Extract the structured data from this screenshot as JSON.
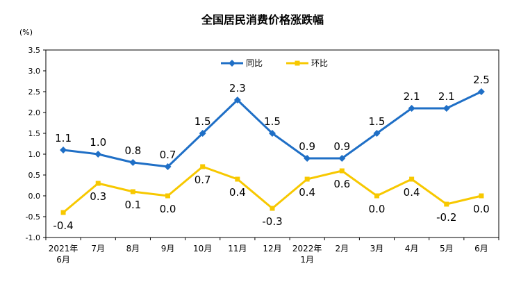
{
  "chart_data": {
    "type": "line",
    "title": "全国居民消费价格涨跌幅",
    "ylabel": "(%)",
    "ylim": [
      -1.0,
      3.5
    ],
    "yticks": [
      "3.5",
      "3.0",
      "2.5",
      "2.0",
      "1.5",
      "1.0",
      "0.5",
      "0.0",
      "-0.5",
      "-1.0"
    ],
    "ytick_values": [
      3.5,
      3.0,
      2.5,
      2.0,
      1.5,
      1.0,
      0.5,
      0.0,
      -0.5,
      -1.0
    ],
    "categories": [
      [
        "2021年",
        "6月"
      ],
      [
        "7月"
      ],
      [
        "8月"
      ],
      [
        "9月"
      ],
      [
        "10月"
      ],
      [
        "11月"
      ],
      [
        "12月"
      ],
      [
        "2022年",
        "1月"
      ],
      [
        "2月"
      ],
      [
        "3月"
      ],
      [
        "4月"
      ],
      [
        "5月"
      ],
      [
        "6月"
      ]
    ],
    "legend_position": "top-center",
    "grid": false,
    "series": [
      {
        "name": "同比",
        "color": "#1f6fc6",
        "marker": "diamond",
        "values": [
          1.1,
          1.0,
          0.8,
          0.7,
          1.5,
          2.3,
          1.5,
          0.9,
          0.9,
          1.5,
          2.1,
          2.1,
          2.5
        ],
        "labels": [
          "1.1",
          "1.0",
          "0.8",
          "0.7",
          "1.5",
          "2.3",
          "1.5",
          "0.9",
          "0.9",
          "1.5",
          "2.1",
          "2.1",
          "2.5"
        ],
        "label_side": "above"
      },
      {
        "name": "环比",
        "color": "#f7c800",
        "marker": "square",
        "values": [
          -0.4,
          0.3,
          0.1,
          0.0,
          0.7,
          0.4,
          -0.3,
          0.4,
          0.6,
          0.0,
          0.4,
          -0.2,
          0.0
        ],
        "labels": [
          "-0.4",
          "0.3",
          "0.1",
          "0.0",
          "0.7",
          "0.4",
          "-0.3",
          "0.4",
          "0.6",
          "0.0",
          "0.4",
          "-0.2",
          "0.0"
        ],
        "label_side": "below"
      }
    ]
  }
}
